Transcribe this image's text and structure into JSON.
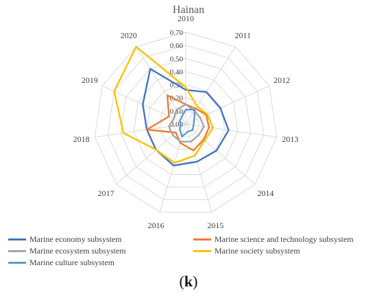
{
  "caption": {
    "open": "(",
    "letter": "k",
    "close": ")"
  },
  "chart_data": {
    "type": "radar",
    "title": "Hainan",
    "categories": [
      "2010",
      "2011",
      "2012",
      "2013",
      "2014",
      "2015",
      "2016",
      "2017",
      "2018",
      "2019",
      "2020"
    ],
    "rlim": [
      0,
      0.7
    ],
    "rticks": [
      "0.00",
      "0.10",
      "0.20",
      "0.30",
      "0.40",
      "0.50",
      "0.60",
      "0.70"
    ],
    "grid": true,
    "legend_position": "bottom",
    "series": [
      {
        "name": "Marine economy subsystem",
        "color": "#4472c4",
        "values": [
          0.26,
          0.29,
          0.29,
          0.33,
          0.31,
          0.3,
          0.33,
          0.3,
          0.3,
          0.36,
          0.5
        ]
      },
      {
        "name": "Marine science and technology subsystem",
        "color": "#ed7d31",
        "values": [
          0.15,
          0.14,
          0.17,
          0.18,
          0.18,
          0.21,
          0.15,
          0.1,
          0.3,
          0.14,
          0.26
        ]
      },
      {
        "name": "Marine ecosystem subsystem",
        "color": "#a5a5a5",
        "values": [
          0.15,
          0.12,
          0.12,
          0.14,
          0.13,
          0.14,
          0.14,
          0.13,
          0.13,
          0.1,
          0.13
        ]
      },
      {
        "name": "Marine society subsystem",
        "color": "#ffc000",
        "values": [
          0.28,
          0.16,
          0.18,
          0.21,
          0.19,
          0.25,
          0.31,
          0.3,
          0.48,
          0.6,
          0.7
        ]
      },
      {
        "name": "Marine culture subsystem",
        "color": "#5b9bd5",
        "values": [
          0.11,
          0.13,
          0.07,
          0.06,
          0.07,
          0.06,
          0.1,
          0.06,
          0.04,
          0.05,
          0.06
        ]
      }
    ]
  }
}
